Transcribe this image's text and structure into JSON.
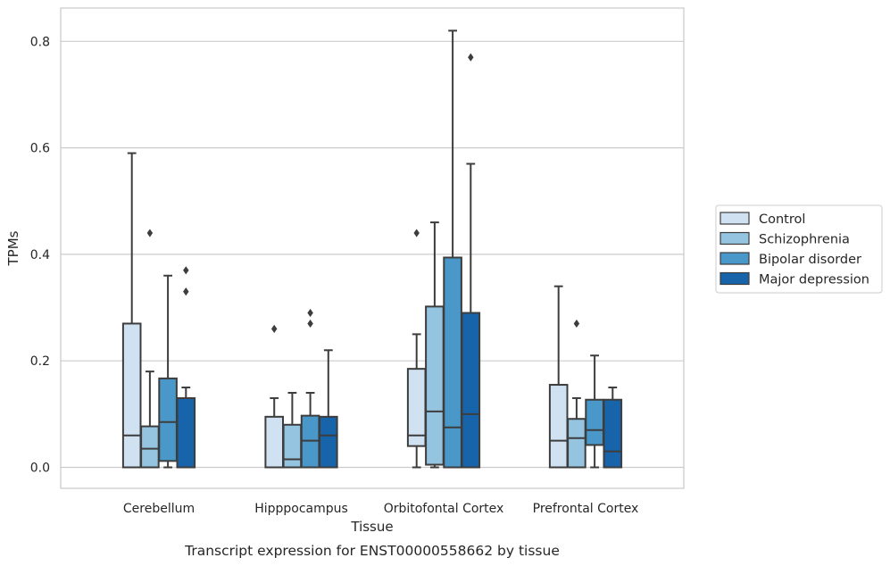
{
  "chart_data": {
    "type": "box",
    "xlabel": "Tissue",
    "ylabel": "TPMs",
    "caption": "Transcript expression for ENST00000558662 by tissue",
    "ylim": [
      -0.04,
      0.86
    ],
    "yticks": [
      "0.0",
      "0.2",
      "0.4",
      "0.6",
      "0.8"
    ],
    "ytick_values": [
      0.0,
      0.2,
      0.4,
      0.6,
      0.8
    ],
    "grid": "horizontal",
    "legend_position": "right",
    "categories": [
      "Cerebellum",
      "Hipppocampus",
      "Orbitofontal Cortex",
      "Prefrontal Cortex"
    ],
    "series": [
      {
        "name": "Control",
        "color": "#d0e1f2",
        "boxes": [
          {
            "whislo": 0.0,
            "q1": 0.0,
            "med": 0.06,
            "q3": 0.27,
            "whishi": 0.59,
            "fliers": []
          },
          {
            "whislo": 0.0,
            "q1": 0.0,
            "med": 0.0,
            "q3": 0.095,
            "whishi": 0.13,
            "fliers": [
              0.26
            ]
          },
          {
            "whislo": 0.0,
            "q1": 0.04,
            "med": 0.06,
            "q3": 0.185,
            "whishi": 0.25,
            "fliers": [
              0.44
            ]
          },
          {
            "whislo": 0.0,
            "q1": 0.0,
            "med": 0.05,
            "q3": 0.155,
            "whishi": 0.34,
            "fliers": []
          }
        ]
      },
      {
        "name": "Schizophrenia",
        "color": "#94c4df",
        "boxes": [
          {
            "whislo": 0.0,
            "q1": 0.0,
            "med": 0.035,
            "q3": 0.077,
            "whishi": 0.18,
            "fliers": [
              0.44
            ]
          },
          {
            "whislo": 0.0,
            "q1": 0.0,
            "med": 0.015,
            "q3": 0.08,
            "whishi": 0.14,
            "fliers": []
          },
          {
            "whislo": 0.0,
            "q1": 0.005,
            "med": 0.105,
            "q3": 0.302,
            "whishi": 0.46,
            "fliers": []
          },
          {
            "whislo": 0.0,
            "q1": 0.0,
            "med": 0.055,
            "q3": 0.091,
            "whishi": 0.13,
            "fliers": [
              0.27
            ]
          }
        ]
      },
      {
        "name": "Bipolar disorder",
        "color": "#4a98c9",
        "boxes": [
          {
            "whislo": 0.0,
            "q1": 0.012,
            "med": 0.085,
            "q3": 0.167,
            "whishi": 0.36,
            "fliers": []
          },
          {
            "whislo": 0.0,
            "q1": 0.0,
            "med": 0.05,
            "q3": 0.097,
            "whishi": 0.14,
            "fliers": [
              0.27,
              0.29
            ]
          },
          {
            "whislo": 0.0,
            "q1": 0.0,
            "med": 0.075,
            "q3": 0.394,
            "whishi": 0.82,
            "fliers": []
          },
          {
            "whislo": 0.0,
            "q1": 0.042,
            "med": 0.07,
            "q3": 0.127,
            "whishi": 0.21,
            "fliers": []
          }
        ]
      },
      {
        "name": "Major depression",
        "color": "#1764ab",
        "boxes": [
          {
            "whislo": 0.0,
            "q1": 0.0,
            "med": 0.13,
            "q3": 0.13,
            "whishi": 0.15,
            "fliers": [
              0.33,
              0.37
            ]
          },
          {
            "whislo": 0.0,
            "q1": 0.0,
            "med": 0.06,
            "q3": 0.095,
            "whishi": 0.22,
            "fliers": []
          },
          {
            "whislo": 0.0,
            "q1": 0.0,
            "med": 0.1,
            "q3": 0.29,
            "whishi": 0.57,
            "fliers": [
              0.77
            ]
          },
          {
            "whislo": 0.0,
            "q1": 0.0,
            "med": 0.03,
            "q3": 0.127,
            "whishi": 0.15,
            "fliers": []
          }
        ]
      }
    ]
  }
}
